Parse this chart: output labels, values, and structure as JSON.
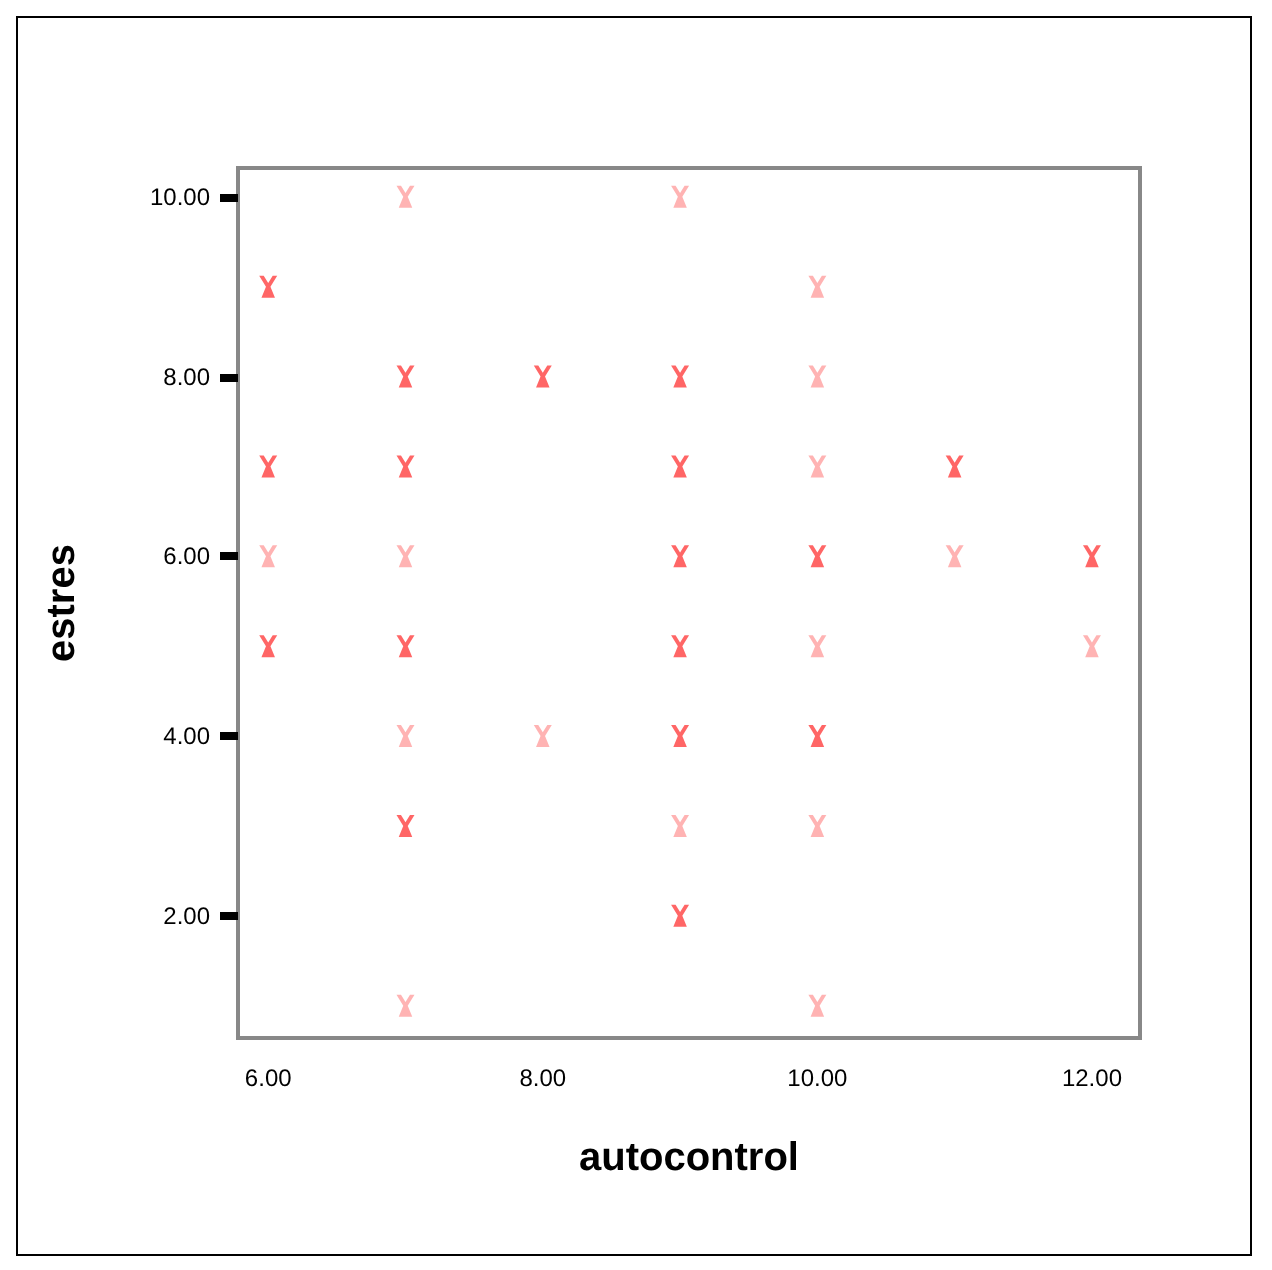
{
  "chart_data": {
    "type": "scatter",
    "xlabel": "autocontrol",
    "ylabel": "estres",
    "marker": "cross",
    "grid": false,
    "x": [
      6,
      6,
      6,
      6,
      7,
      7,
      7,
      7,
      7,
      7,
      7,
      7,
      8,
      8,
      9,
      9,
      9,
      9,
      9,
      9,
      9,
      9,
      10,
      10,
      10,
      10,
      10,
      10,
      10,
      10,
      11,
      11,
      12,
      12
    ],
    "values": [
      9,
      7,
      6,
      5,
      10,
      8,
      7,
      6,
      5,
      4,
      3,
      1,
      8,
      4,
      10,
      8,
      7,
      6,
      5,
      4,
      3,
      2,
      9,
      8,
      7,
      6,
      5,
      4,
      3,
      1,
      7,
      6,
      6,
      5
    ],
    "colors": [
      "#ff4040",
      "#ff4040",
      "#ffa0a0",
      "#ff4040",
      "#ffa0a0",
      "#ff4040",
      "#ff4040",
      "#ffa0a0",
      "#ff4040",
      "#ffa0a0",
      "#ff4040",
      "#ffa0a0",
      "#ff4040",
      "#ffa0a0",
      "#ffa0a0",
      "#ff4040",
      "#ff4040",
      "#ff4040",
      "#ff4040",
      "#ff4040",
      "#ffa0a0",
      "#ff4040",
      "#ffa0a0",
      "#ffa0a0",
      "#ffa0a0",
      "#ff4040",
      "#ffa0a0",
      "#ff4040",
      "#ffa0a0",
      "#ffa0a0",
      "#ff4040",
      "#ffa0a0",
      "#ff4040",
      "#ffa0a0"
    ],
    "xlim": [
      5.78,
      12.35
    ],
    "ylim": [
      0.64,
      10.32
    ],
    "xticks": [
      {
        "value": 6,
        "label": "6.00"
      },
      {
        "value": 8,
        "label": "8.00"
      },
      {
        "value": 10,
        "label": "10.00"
      },
      {
        "value": 12,
        "label": "12.00"
      }
    ],
    "yticks": [
      {
        "value": 2,
        "label": "2.00"
      },
      {
        "value": 4,
        "label": "4.00"
      },
      {
        "value": 6,
        "label": "6.00"
      },
      {
        "value": 8,
        "label": "8.00"
      },
      {
        "value": 10,
        "label": "10.00"
      }
    ]
  }
}
